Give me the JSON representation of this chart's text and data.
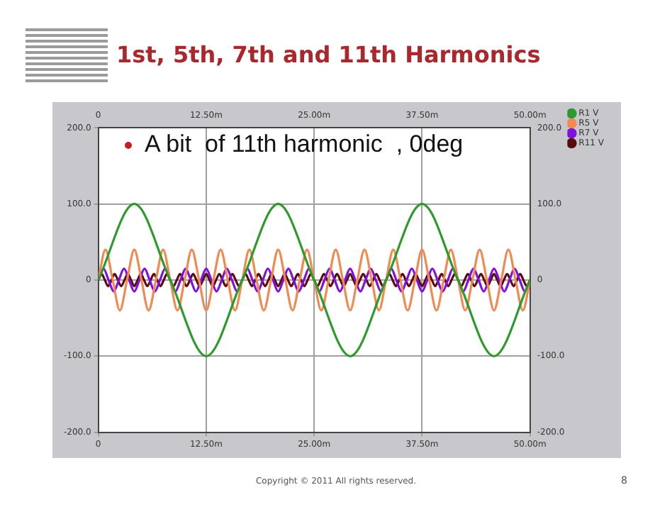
{
  "chart_data": {
    "type": "line",
    "title": "1st, 5th, 7th and 11th Harmonics",
    "annotations": [
      "A bit  of 11th harmonic  , 0deg",
      "Copyright © 2011 All rights reserved.",
      "8"
    ],
    "xlim": [
      0,
      50
    ],
    "xticks": [
      0,
      {
        "value": 12.5,
        "label": "12.50m"
      },
      {
        "value": 25,
        "label": "25.00m"
      },
      {
        "value": 37.5,
        "label": "37.50m"
      },
      {
        "value": 50,
        "label": "50.00m"
      }
    ],
    "x2lim": [
      0,
      50
    ],
    "x2ticks": [
      0,
      {
        "value": 12.5,
        "label": "12.50m"
      },
      {
        "value": 25,
        "label": "25.00m"
      },
      {
        "value": 37.5,
        "label": "37.50m"
      },
      {
        "value": 50,
        "label": "50.00m"
      }
    ],
    "ylim": [
      -200,
      200
    ],
    "yticks": [
      {
        "value": -200,
        "label": "-200.0"
      },
      {
        "value": -100,
        "label": "-100.0"
      },
      0,
      {
        "value": 100,
        "label": "100.0"
      },
      {
        "value": 200,
        "label": "200.0"
      }
    ],
    "y2lim": [
      -200,
      200
    ],
    "y2ticks": [
      {
        "value": -200,
        "label": "-200.0"
      },
      {
        "value": -100,
        "label": "-100.0"
      },
      0,
      {
        "value": 100,
        "label": "100.0"
      },
      {
        "value": 200,
        "label": "200.0"
      }
    ],
    "grid": true,
    "legend": "top right",
    "marker": "none",
    "line_style": "solid",
    "series": [
      {
        "name": "R1 V",
        "color": "#2e9a2e",
        "x": [
          0,
          4.17,
          8.33,
          12.5,
          16.67,
          20.83,
          25,
          29.17,
          33.33,
          37.5,
          41.67,
          45.83,
          50
        ],
        "values": [
          0,
          100,
          0,
          -100,
          0,
          100,
          0,
          -100,
          0,
          100,
          0,
          -100,
          0
        ]
      },
      {
        "name": "R5 V",
        "color": "#f08a50",
        "x": [
          0,
          0.83,
          1.67,
          2.5,
          3.33,
          4.17,
          5,
          5.83,
          6.67,
          7.5,
          8.33,
          9.17,
          10,
          10.83,
          11.67,
          12.5,
          13.33,
          14.17,
          15,
          15.83,
          16.67,
          17.5,
          18.33,
          19.17,
          20,
          20.83,
          21.67,
          22.5,
          23.33,
          24.17,
          25,
          25.83,
          26.67,
          27.5,
          28.33,
          29.17,
          30,
          30.83,
          31.67,
          32.5,
          33.33,
          34.17,
          35,
          35.83,
          36.67,
          37.5,
          38.33,
          39.17,
          40,
          40.83,
          41.67,
          42.5,
          43.33,
          44.17,
          45,
          45.83,
          46.67,
          47.5,
          48.33,
          49.17,
          50
        ],
        "values": [
          0,
          40,
          0,
          -40,
          0,
          40,
          0,
          -40,
          0,
          40,
          0,
          -40,
          0,
          40,
          0,
          -40,
          0,
          40,
          0,
          -40,
          0,
          40,
          0,
          -40,
          0,
          40,
          0,
          -40,
          0,
          40,
          0,
          -40,
          0,
          40,
          0,
          -40,
          0,
          40,
          0,
          -40,
          0,
          40,
          0,
          -40,
          0,
          40,
          0,
          -40,
          0,
          40,
          0,
          -40,
          0,
          40,
          0,
          -40,
          0,
          40,
          0,
          -40,
          0
        ]
      },
      {
        "name": "R7 V",
        "color": "#8010e0",
        "x": [
          0,
          0.6,
          1.19,
          1.79,
          2.38,
          2.98,
          3.57,
          4.17,
          4.76,
          5.36,
          5.95,
          6.55,
          7.14,
          7.74,
          8.33,
          8.93,
          9.52,
          10.12,
          10.71,
          11.31,
          11.9,
          12.5,
          13.1,
          13.69,
          14.29,
          14.88,
          15.48,
          16.07,
          16.67,
          17.26,
          17.86,
          18.45,
          19.05,
          19.64,
          20.24,
          20.83,
          21.43,
          22.02,
          22.62,
          23.21,
          23.81,
          24.4,
          25,
          25.6,
          26.19,
          26.79,
          27.38,
          27.98,
          28.57,
          29.17,
          29.76,
          30.36,
          30.95,
          31.55,
          32.14,
          32.74,
          33.33,
          33.93,
          34.52,
          35.12,
          35.71,
          36.31,
          36.9,
          37.5,
          38.1,
          38.69,
          39.29,
          39.88,
          40.48,
          41.07,
          41.67,
          42.26,
          42.86,
          43.45,
          44.05,
          44.64,
          45.24,
          45.83,
          46.43,
          47.02,
          47.62,
          48.21,
          48.81,
          49.4,
          50
        ],
        "values": [
          0,
          15,
          0,
          -15,
          0,
          15,
          0,
          -15,
          0,
          15,
          0,
          -15,
          0,
          15,
          0,
          -15,
          0,
          15,
          0,
          -15,
          0,
          15,
          0,
          -15,
          0,
          15,
          0,
          -15,
          0,
          15,
          0,
          -15,
          0,
          15,
          0,
          -15,
          0,
          15,
          0,
          -15,
          0,
          15,
          0,
          -15,
          0,
          15,
          0,
          -15,
          0,
          15,
          0,
          -15,
          0,
          15,
          0,
          -15,
          0,
          15,
          0,
          -15,
          0,
          15,
          0,
          -15,
          0,
          15,
          0,
          -15,
          0,
          15,
          0,
          -15,
          0,
          15,
          0,
          -15,
          0,
          15,
          0,
          -15,
          0,
          15,
          0,
          -15,
          0
        ]
      },
      {
        "name": "R11 V",
        "color": "#5a0c0c",
        "x": [
          0,
          0.38,
          0.76,
          1.14,
          1.52,
          1.89,
          2.27,
          2.65,
          3.03,
          3.41,
          3.79,
          4.17,
          4.55,
          4.92,
          5.3,
          5.68,
          6.06,
          6.44,
          6.82,
          7.2,
          7.58,
          7.95,
          8.33,
          8.71,
          9.09,
          9.47,
          9.85,
          10.23,
          10.61,
          10.98,
          11.36,
          11.74,
          12.12,
          12.5,
          12.88,
          13.26,
          13.64,
          14.02,
          14.39,
          14.77,
          15.15,
          15.53,
          15.91,
          16.29,
          16.67,
          17.05,
          17.42,
          17.8,
          18.18,
          18.56,
          18.94,
          19.32,
          19.7,
          20.08,
          20.45,
          20.83,
          21.21,
          21.59,
          21.97,
          22.35,
          22.73,
          23.11,
          23.48,
          23.86,
          24.24,
          24.62,
          25,
          25.38,
          25.76,
          26.14,
          26.52,
          26.89,
          27.27,
          27.65,
          28.03,
          28.41,
          28.79,
          29.17,
          29.55,
          29.92,
          30.3,
          30.68,
          31.06,
          31.44,
          31.82,
          32.2,
          32.58,
          32.95,
          33.33,
          33.71,
          34.09,
          34.47,
          34.85,
          35.23,
          35.61,
          35.98,
          36.36,
          36.74,
          37.12,
          37.5,
          37.88,
          38.26,
          38.64,
          39.02,
          39.39,
          39.77,
          40.15,
          40.53,
          40.91,
          41.29,
          41.67,
          42.05,
          42.42,
          42.8,
          43.18,
          43.56,
          43.94,
          44.32,
          44.7,
          45.08,
          45.45,
          45.83,
          46.21,
          46.59,
          46.97,
          47.35,
          47.73,
          48.11,
          48.48,
          48.86,
          49.24,
          49.62,
          50
        ],
        "values": [
          0,
          8,
          0,
          -8,
          0,
          8,
          0,
          -8,
          0,
          8,
          0,
          -8,
          0,
          8,
          0,
          -8,
          0,
          8,
          0,
          -8,
          0,
          8,
          0,
          -8,
          0,
          8,
          0,
          -8,
          0,
          8,
          0,
          -8,
          0,
          8,
          0,
          -8,
          0,
          8,
          0,
          -8,
          0,
          8,
          0,
          -8,
          0,
          8,
          0,
          -8,
          0,
          8,
          0,
          -8,
          0,
          8,
          0,
          -8,
          0,
          8,
          0,
          -8,
          0,
          8,
          0,
          -8,
          0,
          8,
          0,
          -8,
          0,
          8,
          0,
          -8,
          0,
          8,
          0,
          -8,
          0,
          8,
          0,
          -8,
          0,
          8,
          0,
          -8,
          0,
          8,
          0,
          -8,
          0,
          8,
          0,
          -8,
          0,
          8,
          0,
          -8,
          0,
          8,
          0,
          -8,
          0,
          8,
          0,
          -8,
          0,
          8,
          0,
          -8,
          0,
          8,
          0,
          -8,
          0,
          8,
          0,
          -8,
          0,
          8,
          0,
          -8,
          0,
          8,
          0,
          -8,
          0,
          8,
          0,
          -8,
          0,
          8,
          0,
          -8,
          0
        ]
      }
    ]
  }
}
